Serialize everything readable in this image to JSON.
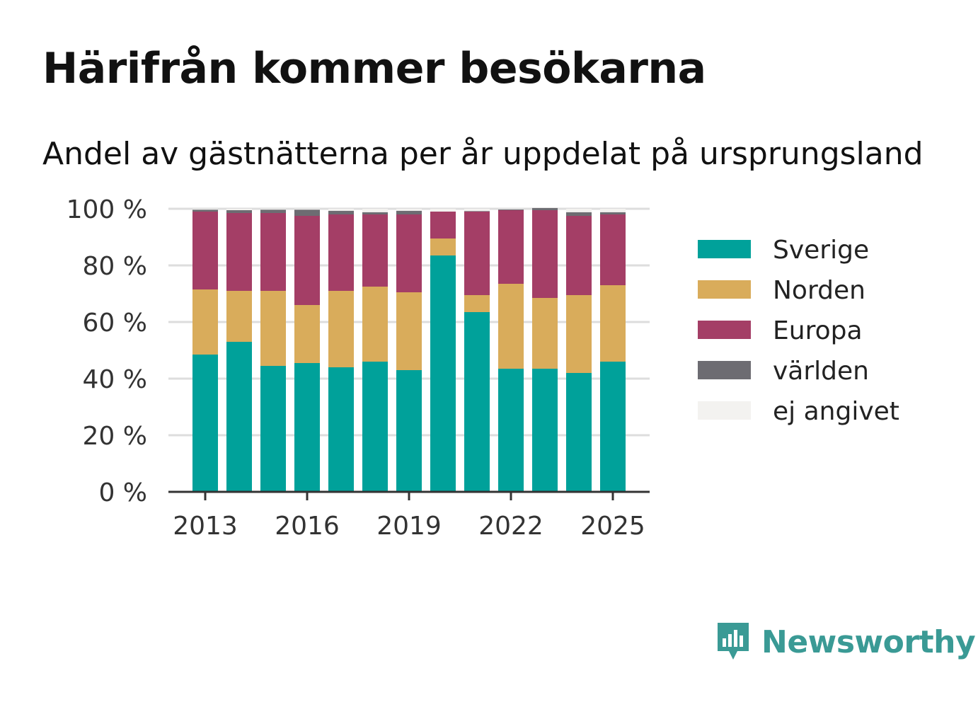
{
  "title": "Härifrån kommer besökarna",
  "subtitle": "Andel av gästnätterna per år uppdelat på ursprungsland",
  "brand": {
    "name": "Newsworthy",
    "icon": "newsworthy-logo-icon",
    "color": "#3a9a95"
  },
  "chart_data": {
    "type": "bar",
    "stacked": true,
    "categories": [
      2013,
      2014,
      2015,
      2016,
      2017,
      2018,
      2019,
      2020,
      2021,
      2022,
      2023,
      2024,
      2025
    ],
    "x_tick_labels": [
      "2013",
      "2016",
      "2019",
      "2022",
      "2025"
    ],
    "y_tick_labels": [
      "0 %",
      "20 %",
      "40 %",
      "60 %",
      "80 %",
      "100 %"
    ],
    "ylim": [
      0,
      100
    ],
    "grid": true,
    "legend_position": "right",
    "series": [
      {
        "name": "Sverige",
        "color": "#00a19a",
        "values": [
          48.5,
          53,
          44.5,
          45.5,
          44,
          46,
          43,
          83.5,
          63.5,
          43.5,
          43.5,
          42,
          46
        ]
      },
      {
        "name": "Norden",
        "color": "#d9ac5b",
        "values": [
          23,
          18,
          26.5,
          20.5,
          27,
          26.5,
          27.5,
          6,
          6,
          30,
          25,
          27.5,
          27
        ]
      },
      {
        "name": "Europa",
        "color": "#a43e66",
        "values": [
          27.5,
          27.5,
          27.5,
          31.5,
          27,
          25.5,
          27.5,
          9.5,
          29.5,
          26,
          31,
          28,
          25
        ]
      },
      {
        "name": "världen",
        "color": "#6d6c72",
        "values": [
          0.7,
          1,
          1.2,
          2.2,
          1.3,
          0.8,
          1.3,
          0,
          0.2,
          0.3,
          0.8,
          1.3,
          0.8
        ]
      },
      {
        "name": "ej angivet",
        "color": "#f3f2f0",
        "values": [
          0.3,
          0.5,
          0.3,
          0.3,
          0.7,
          1.2,
          0.7,
          1,
          0.8,
          0.2,
          0.2,
          1.2,
          1.2
        ]
      }
    ]
  }
}
